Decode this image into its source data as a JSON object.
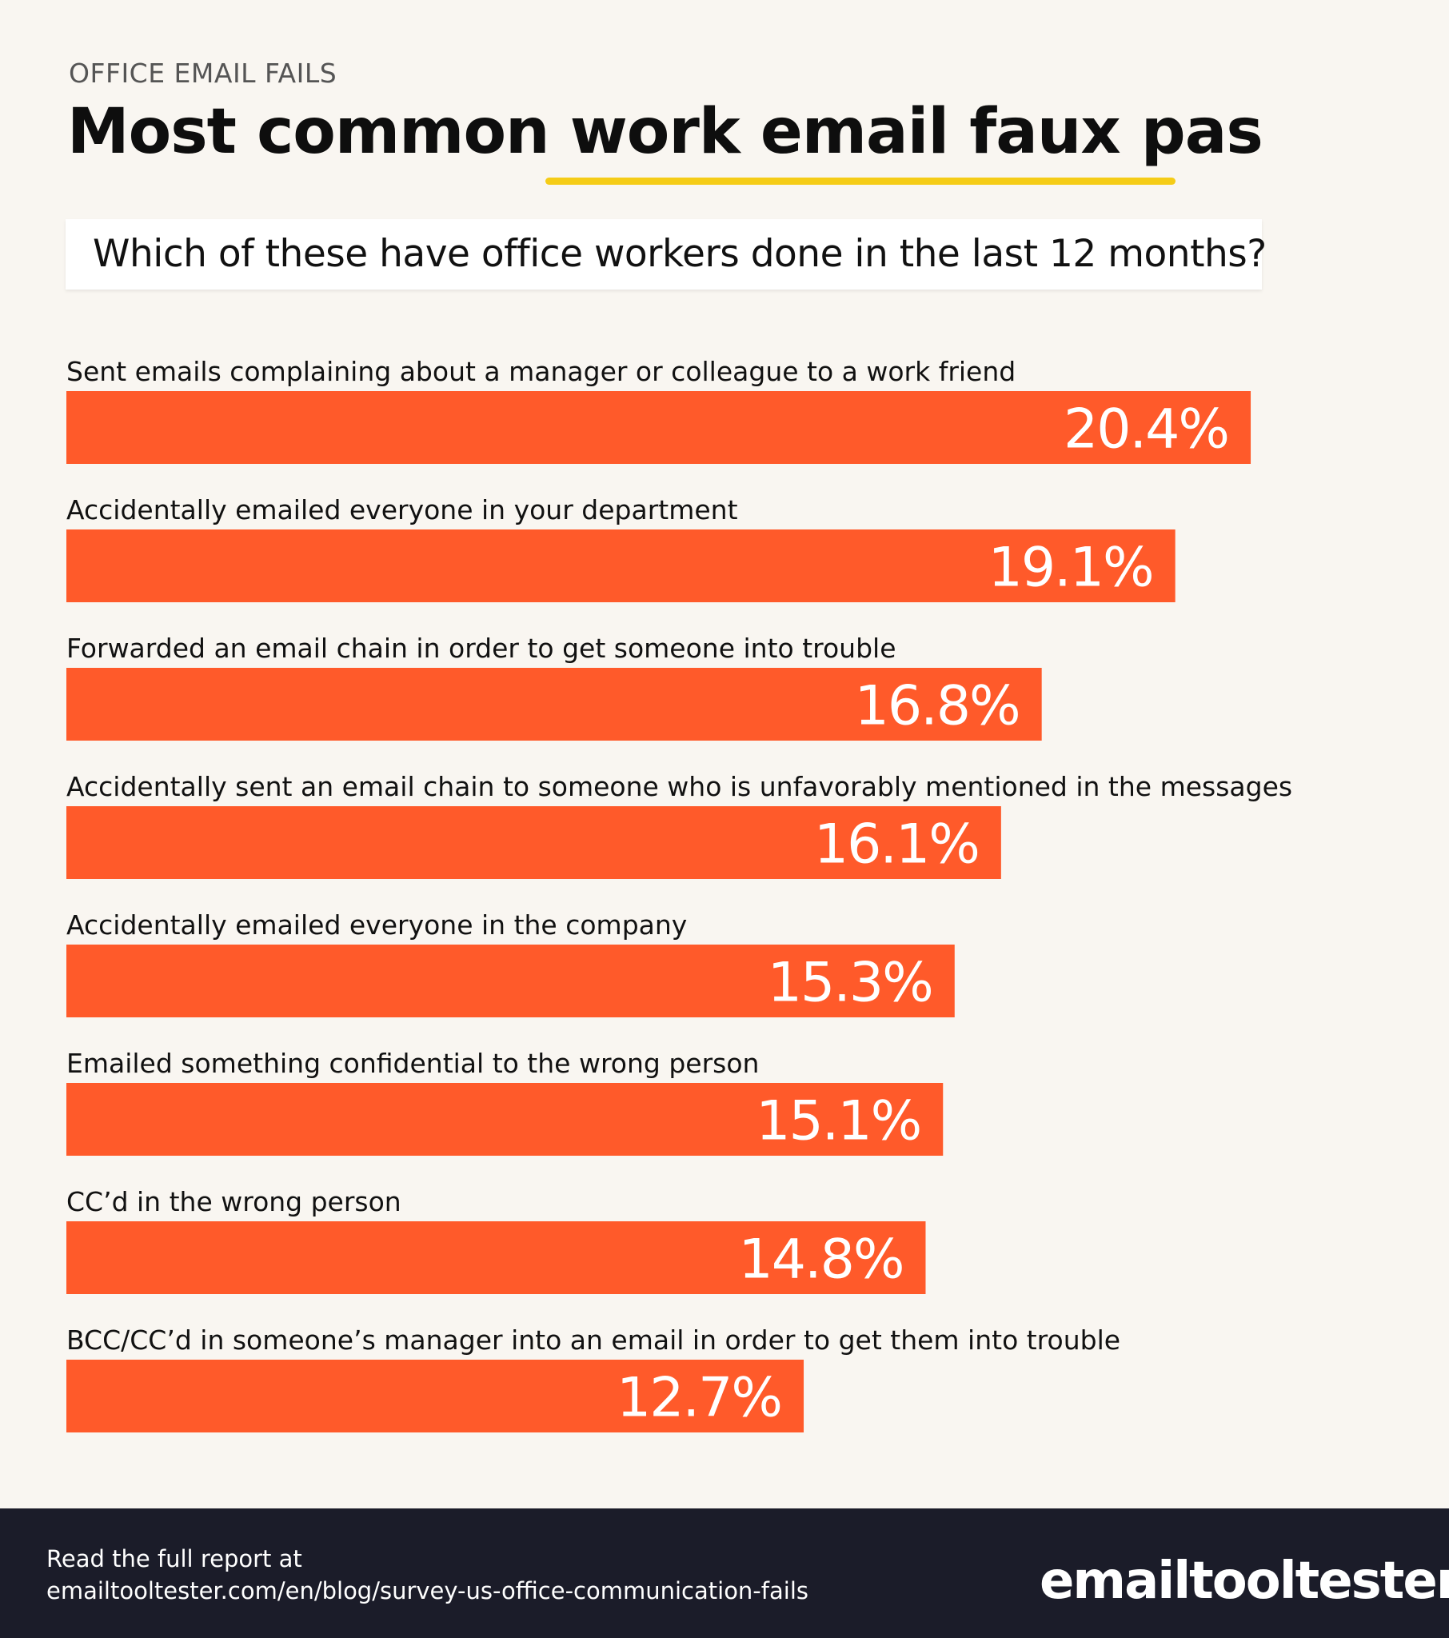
{
  "header": {
    "eyebrow": "OFFICE EMAIL FAILS",
    "title": "Most common work email faux pas",
    "question": "Which of these have office workers done in the last 12 months?"
  },
  "colors": {
    "background": "#f9f6f1",
    "bar": "#ff5a2a",
    "underline": "#f5cc17",
    "footer": "#1b1c29"
  },
  "chart_data": {
    "type": "bar",
    "orientation": "horizontal",
    "categories": [
      "Sent emails complaining about a manager or colleague to a work friend",
      "Accidentally emailed everyone in your department",
      "Forwarded an email chain in order to get someone into trouble",
      "Accidentally sent an email chain to someone who is unfavorably mentioned in the messages",
      "Accidentally emailed everyone in the company",
      "Emailed something confidential to the wrong person",
      "CC’d in the wrong person",
      "BCC/CC’d in someone’s manager into an email in order to get them into trouble"
    ],
    "values": [
      20.4,
      19.1,
      16.8,
      16.1,
      15.3,
      15.1,
      14.8,
      12.7
    ],
    "value_labels": [
      "20.4%",
      "19.1%",
      "16.8%",
      "16.1%",
      "15.3%",
      "15.1%",
      "14.8%",
      "12.7%"
    ],
    "unit": "%",
    "grid": false,
    "legend": "none"
  },
  "footer": {
    "line1": "Read the full report at",
    "line2": "emailtooltester.com/en/blog/survey-us-office-communication-fails",
    "brand": "emailtooltester"
  }
}
